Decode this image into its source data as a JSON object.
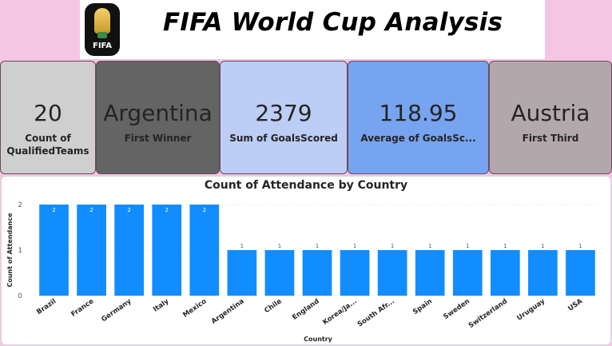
{
  "header": {
    "title": "FIFA World Cup Analysis",
    "logo_text": "FIFA"
  },
  "cards": [
    {
      "value": "20",
      "label": "Count of QualifiedTeams",
      "bg": "#cfcfcf"
    },
    {
      "value": "Argentina",
      "label": "First Winner",
      "bg": "#646464"
    },
    {
      "value": "2379",
      "label": "Sum of GoalsScored",
      "bg": "#bccdf6"
    },
    {
      "value": "118.95",
      "label": "Average of GoalsSc...",
      "bg": "#77a4f0"
    },
    {
      "value": "Austria",
      "label": "First Third",
      "bg": "#b2a8ac"
    }
  ],
  "chart_data": {
    "type": "bar",
    "title": "Count of Attendance by Country",
    "xlabel": "Country",
    "ylabel": "Count of Attendance",
    "categories": [
      "Brazil",
      "France",
      "Germany",
      "Italy",
      "Mexico",
      "Argentina",
      "Chile",
      "England",
      "Korea/Ja...",
      "South Afr...",
      "Spain",
      "Sweden",
      "Switzerland",
      "Uruguay",
      "USA"
    ],
    "values": [
      2,
      2,
      2,
      2,
      2,
      1,
      1,
      1,
      1,
      1,
      1,
      1,
      1,
      1,
      1
    ],
    "yticks": [
      0,
      1,
      2
    ],
    "ylim": [
      0,
      2
    ],
    "bar_color": "#118dff",
    "grid": true,
    "legend": "none"
  }
}
